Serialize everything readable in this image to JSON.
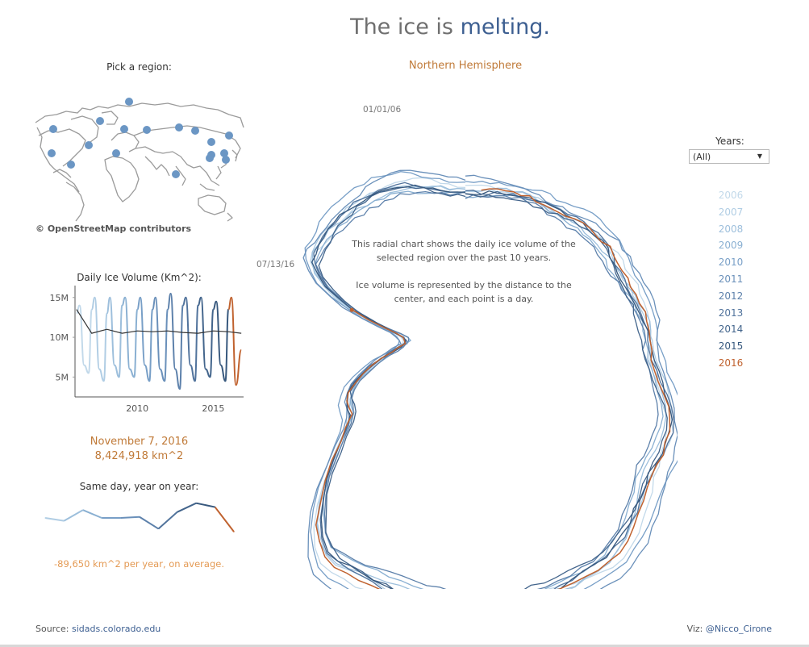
{
  "title": {
    "prefix": "The ice is ",
    "accent": "melting."
  },
  "region": {
    "selected": "Northern Hemisphere"
  },
  "map": {
    "label": "Pick a region:",
    "attribution": "© OpenStreetMap contributors",
    "marker_color": "#6b96c4"
  },
  "volume_chart": {
    "title": "Daily Ice Volume (Km^2):"
  },
  "selection": {
    "date": "November 7, 2016",
    "value": "8,424,918 km^2"
  },
  "same_day": {
    "title": "Same day, year on year:",
    "average": "-89,650 km^2 per year, on average."
  },
  "description": {
    "line1": "This radial chart shows the daily ice volume of the selected region over the past 10 years.",
    "line2": "Ice volume is represented by the distance to the center, and  each point is a day."
  },
  "years": {
    "label": "Years:",
    "selected": "(All)"
  },
  "footer": {
    "source_label": "Source: ",
    "source_link": "sidads.colorado.edu",
    "credit_label": "Viz: ",
    "credit_link": "@Nicco_Cirone"
  },
  "colors": {
    "accent": "#c07a38",
    "highlight": "#c0622f",
    "years": [
      "#c2d9ea",
      "#b0cde4",
      "#9dbfdc",
      "#8ab0d2",
      "#789fc7",
      "#6a90ba",
      "#5d81ab",
      "#51739c",
      "#43658c",
      "#38597e",
      "#c0622f"
    ]
  },
  "chart_data": [
    {
      "type": "line",
      "title": "Daily Ice Volume (Km^2):",
      "series": [
        {
          "name": "",
          "x": [
            2006.0,
            2006.2,
            2006.5,
            2006.8,
            2007.0,
            2007.2,
            2007.5,
            2007.8,
            2008.0,
            2008.2,
            2008.5,
            2008.8,
            2009.0,
            2009.2,
            2009.5,
            2009.8,
            2010.0,
            2010.2,
            2010.5,
            2010.8,
            2011.0,
            2011.2,
            2011.5,
            2011.8,
            2012.0,
            2012.2,
            2012.5,
            2012.8,
            2013.0,
            2013.2,
            2013.5,
            2013.8,
            2014.0,
            2014.2,
            2014.5,
            2014.8,
            2015.0,
            2015.2,
            2015.5,
            2015.8,
            2016.0,
            2016.2,
            2016.5,
            2016.85
          ],
          "y": [
            13.0,
            14.0,
            6.5,
            5.5,
            13.5,
            15.0,
            6.0,
            4.5,
            13.0,
            15.0,
            6.5,
            5.0,
            14.0,
            15.0,
            6.0,
            5.0,
            13.5,
            15.0,
            6.5,
            4.5,
            13.5,
            15.0,
            6.0,
            4.5,
            13.5,
            15.5,
            6.0,
            3.5,
            14.0,
            15.0,
            6.5,
            4.5,
            14.0,
            15.0,
            6.0,
            5.0,
            13.5,
            14.5,
            6.5,
            4.5,
            13.5,
            15.0,
            4.0,
            8.4
          ]
        },
        {
          "name": "",
          "x": [
            2006.0,
            2007.0,
            2008.0,
            2009.0,
            2010.0,
            2011.0,
            2012.0,
            2013.0,
            2014.0,
            2015.0,
            2016.0,
            2016.85
          ],
          "y": [
            13.5,
            10.5,
            11.0,
            10.5,
            10.8,
            10.7,
            10.8,
            10.6,
            10.5,
            10.8,
            10.7,
            10.5
          ]
        }
      ],
      "x_ticks": [
        "2010",
        "2015"
      ],
      "y_ticks": [
        "15M",
        "10M",
        "5M"
      ],
      "xlim": [
        2005.9,
        2017.0
      ],
      "ylim": [
        2.5,
        16.5
      ]
    },
    {
      "type": "line",
      "title": "Same day, year on year:",
      "categories": [
        "2006",
        "2007",
        "2008",
        "2009",
        "2010",
        "2011",
        "2012",
        "2013",
        "2014",
        "2015",
        "2016"
      ],
      "values": [
        9.8,
        9.5,
        10.6,
        9.8,
        9.8,
        9.9,
        8.7,
        10.4,
        11.3,
        10.9,
        8.4
      ]
    },
    {
      "type": "line",
      "title": "Northern Hemisphere",
      "note": "radial",
      "start_label": "01/01/06",
      "end_label": "07/13/16",
      "years": [
        "2006",
        "2007",
        "2008",
        "2009",
        "2010",
        "2011",
        "2012",
        "2013",
        "2014",
        "2015",
        "2016"
      ],
      "highlight_year": "2016"
    }
  ]
}
